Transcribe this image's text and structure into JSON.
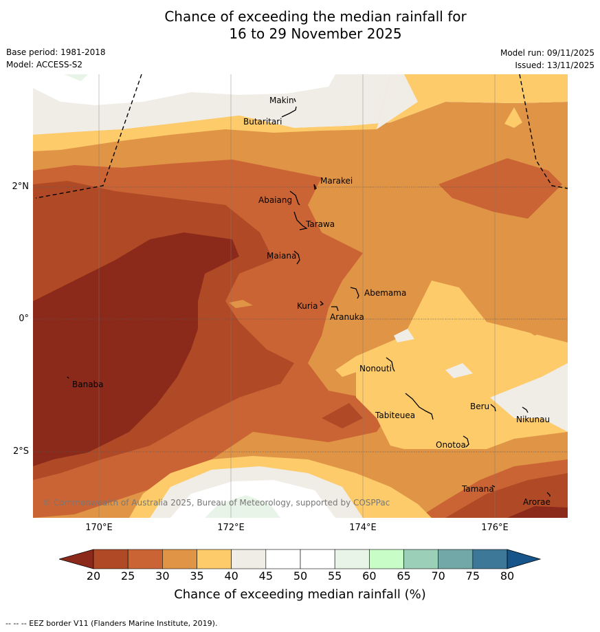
{
  "title_line1": "Chance of exceeding the median rainfall for",
  "title_line2": "16 to 29 November 2025",
  "base_period": "Base period: 1981-2018",
  "model": "Model: ACCESS-S2",
  "model_run": "Model run: 09/11/2025",
  "issued": "Issued: 13/11/2025",
  "copyright": "© Commonwealth of Australia 2025, Bureau of Meteorology, supported by COSPPac",
  "footnote": "--  --  -- EEZ border V11 (Flanders Marine Institute, 2019).",
  "axes": {
    "lon_labels": [
      "170°E",
      "172°E",
      "174°E",
      "176°E"
    ],
    "lat_labels": [
      "2°N",
      "0°",
      "2°S"
    ]
  },
  "islands": [
    {
      "name": "Makin"
    },
    {
      "name": "Butaritari"
    },
    {
      "name": "Marakei"
    },
    {
      "name": "Abaiang"
    },
    {
      "name": "Tarawa"
    },
    {
      "name": "Maiana"
    },
    {
      "name": "Abemama"
    },
    {
      "name": "Kuria"
    },
    {
      "name": "Aranuka"
    },
    {
      "name": "Banaba"
    },
    {
      "name": "Nonouti"
    },
    {
      "name": "Tabiteuea"
    },
    {
      "name": "Beru"
    },
    {
      "name": "Nikunau"
    },
    {
      "name": "Onotoa"
    },
    {
      "name": "Tamana"
    },
    {
      "name": "Arorae"
    }
  ],
  "colorbar": {
    "label": "Chance of exceeding median rainfall (%)",
    "ticks": [
      "20",
      "25",
      "30",
      "35",
      "40",
      "45",
      "50",
      "55",
      "60",
      "65",
      "70",
      "75",
      "80"
    ],
    "colors": [
      "#8b2a1a",
      "#b04a26",
      "#cb6434",
      "#e09446",
      "#fdcb6a",
      "#f0ece6",
      "#ffffff",
      "#ffffff",
      "#e8f4e8",
      "#c8fdc8",
      "#9ccfb7",
      "#72a8a8",
      "#3e7898",
      "#17548a"
    ]
  },
  "legend": {
    "low_color": "#8b2a1a",
    "high_color": "#17548a"
  }
}
